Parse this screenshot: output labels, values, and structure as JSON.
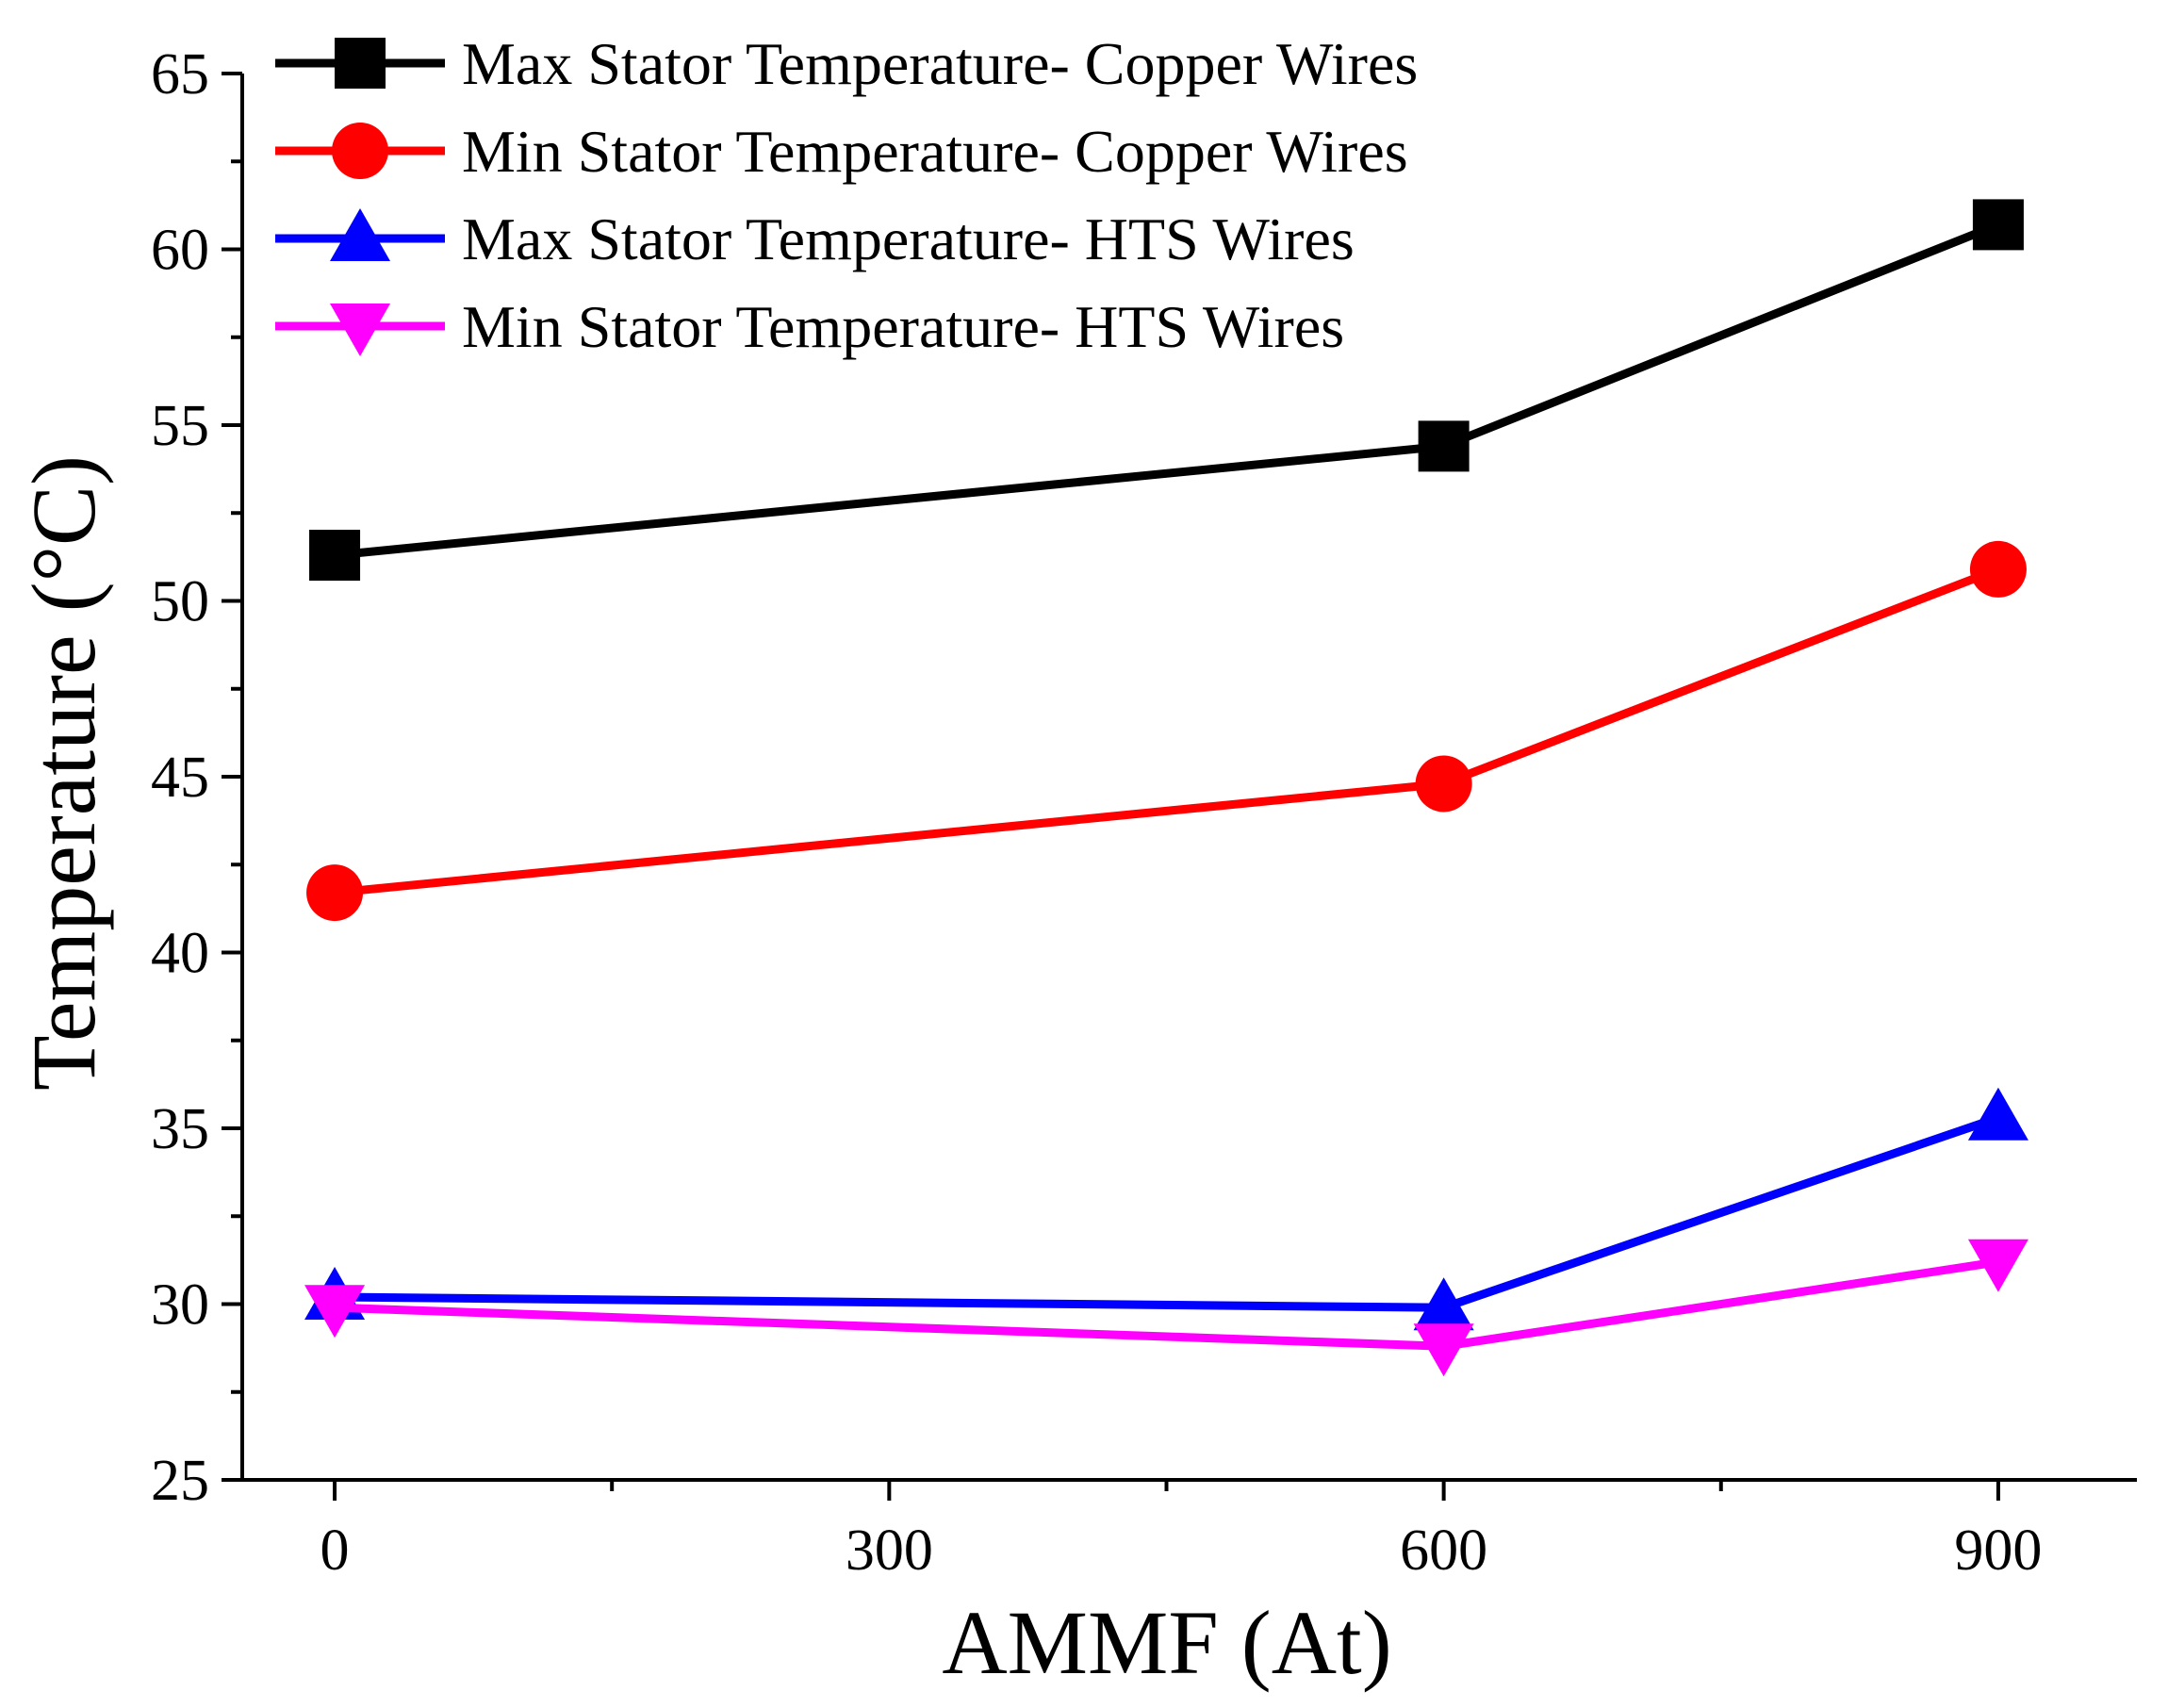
{
  "chart_data": {
    "type": "line",
    "title": "",
    "xlabel": "AMMF (At)",
    "ylabel": "Temperature (°C)",
    "x": [
      0,
      600,
      900
    ],
    "xlim": [
      -50,
      975
    ],
    "ylim": [
      25,
      65
    ],
    "xticks": [
      0,
      300,
      600,
      900
    ],
    "xtick_labels": [
      "0",
      "300",
      "600",
      "900"
    ],
    "yticks": [
      25,
      30,
      35,
      40,
      45,
      50,
      55,
      60,
      65
    ],
    "ytick_labels": [
      "25",
      "30",
      "35",
      "40",
      "45",
      "50",
      "55",
      "60",
      "65"
    ],
    "grid": false,
    "legend_position": "top-left",
    "series": [
      {
        "name": "Max Stator Temperature- Copper Wires",
        "color": "#000000",
        "marker": "square",
        "values": [
          51.3,
          54.4,
          60.7
        ]
      },
      {
        "name": "Min Stator Temperature- Copper Wires",
        "color": "#ff0000",
        "marker": "circle",
        "values": [
          41.7,
          44.8,
          50.9
        ]
      },
      {
        "name": "Max Stator Temperature- HTS Wires",
        "color": "#0000ff",
        "marker": "triangle-up",
        "values": [
          30.2,
          29.9,
          35.3
        ]
      },
      {
        "name": "Min Stator Temperature- HTS Wires",
        "color": "#ff00ff",
        "marker": "triangle-down",
        "values": [
          29.9,
          28.8,
          31.2
        ]
      }
    ]
  }
}
